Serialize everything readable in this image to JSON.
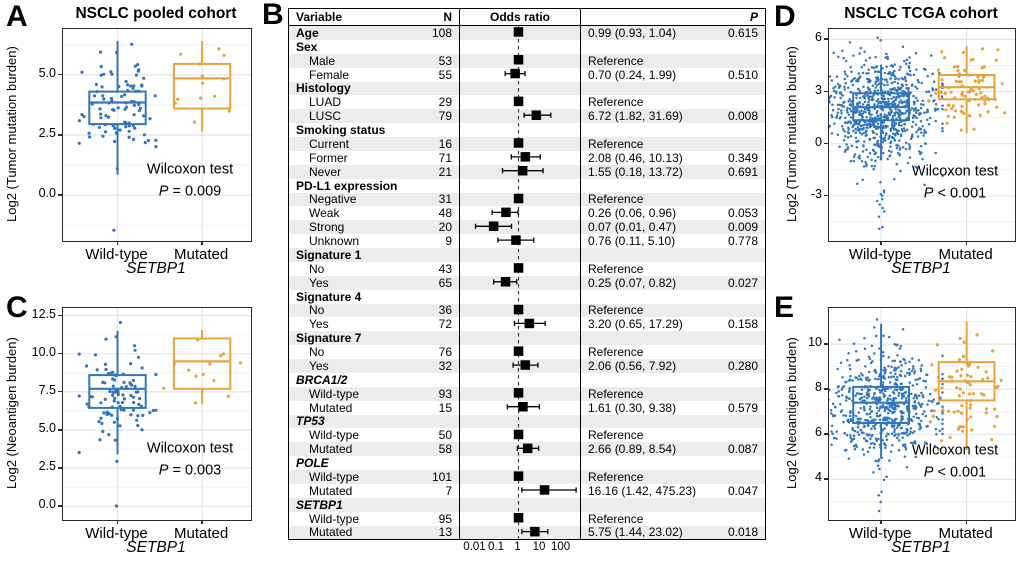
{
  "panels": {
    "A": {
      "letter": "A",
      "title": "NSCLC pooled cohort",
      "ylabel": "Log2 (Tumor mutation burden)",
      "xlabel": "SETBP1",
      "annotation": {
        "test": "Wilcoxon test",
        "p_symbol": "P",
        "p_rest": " = 0.009"
      }
    },
    "B": {
      "letter": "B",
      "columns": {
        "variable": "Variable",
        "n": "N",
        "odds_ratio": "Odds ratio",
        "p": "P"
      }
    },
    "C": {
      "letter": "C",
      "ylabel": "Log2 (Neoantigen burden)",
      "xlabel": "SETBP1",
      "annotation": {
        "test": "Wilcoxon test",
        "p_symbol": "P",
        "p_rest": " = 0.003"
      }
    },
    "D": {
      "letter": "D",
      "title": "NSCLC TCGA cohort",
      "ylabel": "Log2 (Tumor mutation burden)",
      "xlabel": "SETBP1",
      "annotation": {
        "test": "Wilcoxon test",
        "p_symbol": "P",
        "p_rest": " < 0.001"
      }
    },
    "E": {
      "letter": "E",
      "ylabel": "Log2 (Neoantigen burden)",
      "xlabel": "SETBP1",
      "annotation": {
        "test": "Wilcoxon test",
        "p_symbol": "P",
        "p_rest": " < 0.001"
      }
    }
  },
  "colors": {
    "wild_type": "#3176bc",
    "mutated": "#e8a33c",
    "marker": "#000000",
    "band": "#ececec",
    "grid_major": "#e4e4e4",
    "grid_minor": "#f2f2f2"
  },
  "chart_data": [
    {
      "panel": "A",
      "type": "boxplot_jitter",
      "title": "NSCLC pooled cohort",
      "xlabel": "SETBP1",
      "ylabel": "Log2 (Tumor mutation burden)",
      "categories": [
        "Wild-type",
        "Mutated"
      ],
      "ylim": [
        -1.9,
        6.9
      ],
      "yticks": [
        0,
        2.5,
        5
      ],
      "ytick_labels": [
        "0.0",
        "2.5",
        "5.0"
      ],
      "test": "Wilcoxon test",
      "p_value": "P = 0.009",
      "groups": [
        {
          "category": "Wild-type",
          "color": "#3176bc",
          "n_points": 92,
          "whisker_low": 0.85,
          "q1": 2.95,
          "median": 3.85,
          "q3": 4.3,
          "whisker_high": 6.4,
          "points_mean": 3.7,
          "points_sd": 1.1,
          "points_min": 0.1,
          "points_max": 6.45,
          "outliers": [
            -1.45
          ],
          "seed": 11
        },
        {
          "category": "Mutated",
          "color": "#e8a33c",
          "n_points": 13,
          "whisker_low": 2.65,
          "q1": 3.6,
          "median": 4.85,
          "q3": 5.45,
          "whisker_high": 6.4,
          "points_mean": 4.6,
          "points_sd": 1.05,
          "points_min": 2.6,
          "points_max": 6.45,
          "outliers": [],
          "seed": 12
        }
      ]
    },
    {
      "panel": "B",
      "type": "forest",
      "columns": [
        "Variable",
        "N",
        "Odds ratio",
        "P"
      ],
      "axis_ticks": [
        0.01,
        0.1,
        1,
        10,
        100
      ],
      "axis_tick_labels": [
        "0.01",
        "0.1",
        "1",
        "10",
        "100"
      ],
      "log10_range": [
        -2.72,
        2.95
      ],
      "rows": [
        {
          "label": "Age",
          "style": "group",
          "n": "108",
          "or_text": "0.99 (0.93, 1.04)",
          "p": "0.615",
          "or": 0.99,
          "lo": 0.93,
          "hi": 1.04
        },
        {
          "label": "Sex",
          "style": "group"
        },
        {
          "label": "Male",
          "style": "item",
          "n": "53",
          "or_text": "Reference",
          "p": "",
          "or": 1,
          "ref": true
        },
        {
          "label": "Female",
          "style": "item",
          "n": "55",
          "or_text": "0.70 (0.24, 1.99)",
          "p": "0.510",
          "or": 0.7,
          "lo": 0.24,
          "hi": 1.99
        },
        {
          "label": "Histology",
          "style": "group"
        },
        {
          "label": "LUAD",
          "style": "item",
          "n": "29",
          "or_text": "Reference",
          "p": "",
          "or": 1,
          "ref": true
        },
        {
          "label": "LUSC",
          "style": "item",
          "n": "79",
          "or_text": "6.72 (1.82, 31.69)",
          "p": "0.008",
          "or": 6.72,
          "lo": 1.82,
          "hi": 31.69
        },
        {
          "label": "Smoking status",
          "style": "group"
        },
        {
          "label": "Current",
          "style": "item",
          "n": "16",
          "or_text": "Reference",
          "p": "",
          "or": 1,
          "ref": true
        },
        {
          "label": "Former",
          "style": "item",
          "n": "71",
          "or_text": "2.08 (0.46, 10.13)",
          "p": "0.349",
          "or": 2.08,
          "lo": 0.46,
          "hi": 10.13
        },
        {
          "label": "Never",
          "style": "item",
          "n": "21",
          "or_text": "1.55 (0.18, 13.72)",
          "p": "0.691",
          "or": 1.55,
          "lo": 0.18,
          "hi": 13.72
        },
        {
          "label": "PD-L1 expression",
          "style": "group"
        },
        {
          "label": "Negative",
          "style": "item",
          "n": "31",
          "or_text": "Reference",
          "p": "",
          "or": 1,
          "ref": true
        },
        {
          "label": "Weak",
          "style": "item",
          "n": "48",
          "or_text": "0.26 (0.06, 0.96)",
          "p": "0.053",
          "or": 0.26,
          "lo": 0.06,
          "hi": 0.96
        },
        {
          "label": "Strong",
          "style": "item",
          "n": "20",
          "or_text": "0.07 (0.01, 0.47)",
          "p": "0.009",
          "or": 0.07,
          "lo": 0.01,
          "hi": 0.47
        },
        {
          "label": "Unknown",
          "style": "item",
          "n": "9",
          "or_text": "0.76 (0.11, 5.10)",
          "p": "0.778",
          "or": 0.76,
          "lo": 0.11,
          "hi": 5.1
        },
        {
          "label": "Signature 1",
          "style": "group"
        },
        {
          "label": "No",
          "style": "item",
          "n": "43",
          "or_text": "Reference",
          "p": "",
          "or": 1,
          "ref": true
        },
        {
          "label": "Yes",
          "style": "item",
          "n": "65",
          "or_text": "0.25 (0.07, 0.82)",
          "p": "0.027",
          "or": 0.25,
          "lo": 0.07,
          "hi": 0.82
        },
        {
          "label": "Signature 4",
          "style": "group"
        },
        {
          "label": "No",
          "style": "item",
          "n": "36",
          "or_text": "Reference",
          "p": "",
          "or": 1,
          "ref": true
        },
        {
          "label": "Yes",
          "style": "item",
          "n": "72",
          "or_text": "3.20 (0.65, 17.29)",
          "p": "0.158",
          "or": 3.2,
          "lo": 0.65,
          "hi": 17.29
        },
        {
          "label": "Signature 7",
          "style": "group"
        },
        {
          "label": "No",
          "style": "item",
          "n": "76",
          "or_text": "Reference",
          "p": "",
          "or": 1,
          "ref": true
        },
        {
          "label": "Yes",
          "style": "item",
          "n": "32",
          "or_text": "2.06 (0.56, 7.92)",
          "p": "0.280",
          "or": 2.06,
          "lo": 0.56,
          "hi": 7.92
        },
        {
          "label": "BRCA1/2",
          "style": "group-italic"
        },
        {
          "label": "Wild-type",
          "style": "item",
          "n": "93",
          "or_text": "Reference",
          "p": "",
          "or": 1,
          "ref": true
        },
        {
          "label": "Mutated",
          "style": "item",
          "n": "15",
          "or_text": "1.61 (0.30, 9.38)",
          "p": "0.579",
          "or": 1.61,
          "lo": 0.3,
          "hi": 9.38
        },
        {
          "label": "TP53",
          "style": "group-italic"
        },
        {
          "label": "Wild-type",
          "style": "item",
          "n": "50",
          "or_text": "Reference",
          "p": "",
          "or": 1,
          "ref": true
        },
        {
          "label": "Mutated",
          "style": "item",
          "n": "58",
          "or_text": "2.66 (0.89, 8.54)",
          "p": "0.087",
          "or": 2.66,
          "lo": 0.89,
          "hi": 8.54
        },
        {
          "label": "POLE",
          "style": "group-italic"
        },
        {
          "label": "Wild-type",
          "style": "item",
          "n": "101",
          "or_text": "Reference",
          "p": "",
          "or": 1,
          "ref": true
        },
        {
          "label": "Mutated",
          "style": "item",
          "n": "7",
          "or_text": "16.16 (1.42, 475.23)",
          "p": "0.047",
          "or": 16.16,
          "lo": 1.42,
          "hi": 475.23
        },
        {
          "label": "SETBP1",
          "style": "group-italic"
        },
        {
          "label": "Wild-type",
          "style": "item",
          "n": "95",
          "or_text": "Reference",
          "p": "",
          "or": 1,
          "ref": true
        },
        {
          "label": "Mutated",
          "style": "item",
          "n": "13",
          "or_text": "5.75 (1.44, 23.02)",
          "p": "0.018",
          "or": 5.75,
          "lo": 1.44,
          "hi": 23.02
        }
      ]
    },
    {
      "panel": "C",
      "type": "boxplot_jitter",
      "title": "",
      "xlabel": "SETBP1",
      "ylabel": "Log2 (Neoantigen burden)",
      "categories": [
        "Wild-type",
        "Mutated"
      ],
      "ylim": [
        -0.9,
        13.0
      ],
      "yticks": [
        0,
        2.5,
        5,
        7.5,
        10,
        12.5
      ],
      "ytick_labels": [
        "0.0",
        "2.5",
        "5.0",
        "7.5",
        "10.0",
        "12.5"
      ],
      "test": "Wilcoxon test",
      "p_value": "P = 0.003",
      "groups": [
        {
          "category": "Wild-type",
          "color": "#3176bc",
          "n_points": 92,
          "whisker_low": 3.4,
          "q1": 6.45,
          "median": 7.7,
          "q3": 8.6,
          "whisker_high": 11.5,
          "points_mean": 7.4,
          "points_sd": 1.5,
          "points_min": 3.3,
          "points_max": 11.5,
          "outliers": [
            12.05,
            2.95,
            0.02
          ],
          "seed": 31
        },
        {
          "category": "Mutated",
          "color": "#e8a33c",
          "n_points": 13,
          "whisker_low": 6.7,
          "q1": 7.7,
          "median": 9.5,
          "q3": 11.0,
          "whisker_high": 11.55,
          "points_mean": 9.3,
          "points_sd": 1.5,
          "points_min": 6.6,
          "points_max": 11.6,
          "outliers": [],
          "seed": 32
        }
      ]
    },
    {
      "panel": "D",
      "type": "boxplot_jitter",
      "title": "NSCLC TCGA cohort",
      "xlabel": "SETBP1",
      "ylabel": "Log2 (Tumor mutation burden)",
      "categories": [
        "Wild-type",
        "Mutated"
      ],
      "ylim": [
        -5.6,
        6.6
      ],
      "yticks": [
        -3,
        0,
        3,
        6
      ],
      "ytick_labels": [
        "-3",
        "0",
        "3",
        "6"
      ],
      "test": "Wilcoxon test",
      "p_value": "P < 0.001",
      "groups": [
        {
          "category": "Wild-type",
          "color": "#3176bc",
          "n_points": 850,
          "whisker_low": -0.95,
          "q1": 1.35,
          "median": 2.1,
          "q3": 2.9,
          "whisker_high": 4.55,
          "points_mean": 2.0,
          "points_sd": 1.5,
          "points_min": -2.6,
          "points_max": 6.15,
          "outliers": [
            -4.9,
            -4.8,
            -4.2,
            -3.9,
            -3.7,
            -3.5,
            -3.3,
            -3.2,
            -3.0,
            -2.9,
            -2.8,
            -2.7,
            6.1,
            5.95
          ],
          "seed": 41
        },
        {
          "category": "Mutated",
          "color": "#e8a33c",
          "n_points": 80,
          "whisker_low": 0.6,
          "q1": 2.55,
          "median": 3.25,
          "q3": 3.95,
          "whisker_high": 5.6,
          "points_mean": 3.2,
          "points_sd": 1.1,
          "points_min": 0.55,
          "points_max": 5.6,
          "outliers": [],
          "seed": 42
        }
      ]
    },
    {
      "panel": "E",
      "type": "boxplot_jitter",
      "title": "",
      "xlabel": "SETBP1",
      "ylabel": "Log2 (Neoantigen burden)",
      "categories": [
        "Wild-type",
        "Mutated"
      ],
      "ylim": [
        2.2,
        11.6
      ],
      "yticks": [
        4,
        6,
        8,
        10
      ],
      "ytick_labels": [
        "4",
        "6",
        "8",
        "10"
      ],
      "test": "Wilcoxon test",
      "p_value": "P < 0.001",
      "groups": [
        {
          "category": "Wild-type",
          "color": "#3176bc",
          "n_points": 650,
          "whisker_low": 4.95,
          "q1": 6.5,
          "median": 7.4,
          "q3": 8.1,
          "whisker_high": 10.9,
          "points_mean": 7.25,
          "points_sd": 1.2,
          "points_min": 3.6,
          "points_max": 11.2,
          "outliers": [
            2.6,
            3.0,
            3.3,
            3.45
          ],
          "seed": 51
        },
        {
          "category": "Mutated",
          "color": "#e8a33c",
          "n_points": 70,
          "whisker_low": 5.3,
          "q1": 7.5,
          "median": 8.35,
          "q3": 9.2,
          "whisker_high": 11.0,
          "points_mean": 8.3,
          "points_sd": 1.2,
          "points_min": 5.25,
          "points_max": 11.0,
          "outliers": [],
          "seed": 52
        }
      ]
    }
  ]
}
